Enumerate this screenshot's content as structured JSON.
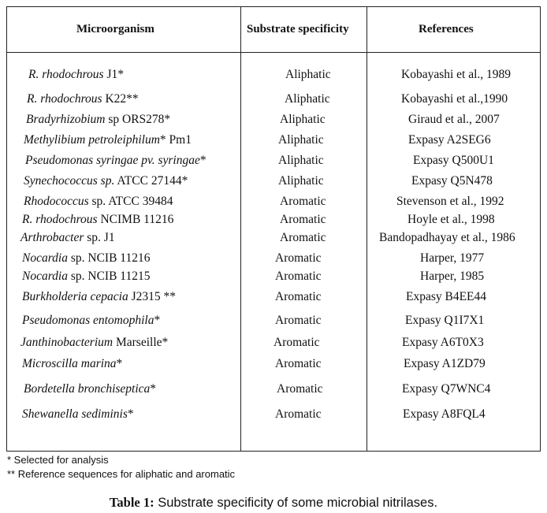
{
  "table": {
    "headers": {
      "microorganism": "Microorganism",
      "substrate": "Substrate specificity",
      "references": "References"
    },
    "rows": [
      {
        "organism_italic": "R.  rhodochrous",
        "organism_rest": " J1*",
        "substrate": "Aliphatic",
        "reference": "Kobayashi et al., 1989"
      },
      {
        "organism_italic": "R. rhodochrous",
        "organism_rest": " K22**",
        "substrate": "Aliphatic",
        "reference": "Kobayashi et al.,1990"
      },
      {
        "organism_italic": "Bradyrhizobium",
        "organism_rest": " sp  ORS278*",
        "substrate": "Aliphatic",
        "reference": "Giraud et al., 2007"
      },
      {
        "organism_italic": "Methylibium petroleiphilum",
        "organism_rest": "* Pm1",
        "substrate": "Aliphatic",
        "reference": "Expasy A2SEG6"
      },
      {
        "organism_italic": "Pseudomonas syringae pv. syringae",
        "organism_rest": "*",
        "substrate": "Aliphatic",
        "reference": "Expasy Q500U1"
      },
      {
        "organism_italic": "Synechococcus sp.",
        "organism_rest": " ATCC 27144*",
        "substrate": "Aliphatic",
        "reference": "Expasy Q5N478"
      },
      {
        "organism_italic": "Rhodococcus",
        "organism_rest": " sp. ATCC 39484",
        "substrate": "Aromatic",
        "reference": "Stevenson et al., 1992"
      },
      {
        "organism_italic": "R. rhodochrous",
        "organism_rest": " NCIMB 11216",
        "substrate": "Aromatic",
        "reference": "Hoyle et al., 1998"
      },
      {
        "organism_italic": "Arthrobacter",
        "organism_rest": "  sp. J1",
        "substrate": "Aromatic",
        "reference": "Bandopadhayay et al., 1986"
      },
      {
        "organism_italic": "Nocardia",
        "organism_rest": " sp. NCIB 11216",
        "substrate": "Aromatic",
        "reference": "Harper, 1977"
      },
      {
        "organism_italic": "Nocardia",
        "organism_rest": " sp. NCIB 11215",
        "substrate": "Aromatic",
        "reference": "Harper, 1985"
      },
      {
        "organism_italic": "Burkholderia cepacia",
        "organism_rest": " J2315 **",
        "substrate": "Aromatic",
        "reference": "Expasy  B4EE44"
      },
      {
        "organism_italic": "Pseudomonas entomophila",
        "organism_rest": "*",
        "substrate": "Aromatic",
        "reference": "Expasy Q1I7X1"
      },
      {
        "organism_italic": "Janthinobacterium",
        "organism_rest": " Marseille*",
        "substrate": "Aromatic",
        "reference": "Expasy A6T0X3"
      },
      {
        "organism_italic": "Microscilla marina",
        "organism_rest": "*",
        "substrate": "Aromatic",
        "reference": "Expasy A1ZD79"
      },
      {
        "organism_italic": "Bordetella bronchiseptica",
        "organism_rest": "*",
        "substrate": "Aromatic",
        "reference": "Expasy Q7WNC4"
      },
      {
        "organism_italic": "Shewanella sediminis",
        "organism_rest": "*",
        "substrate": "Aromatic",
        "reference": "Expasy A8FQL4"
      }
    ]
  },
  "footnotes": {
    "single": "* Selected for analysis",
    "double": "** Reference sequences for aliphatic and aromatic"
  },
  "caption": {
    "label": "Table 1:",
    "text": " Substrate specificity of some microbial nitrilases."
  }
}
